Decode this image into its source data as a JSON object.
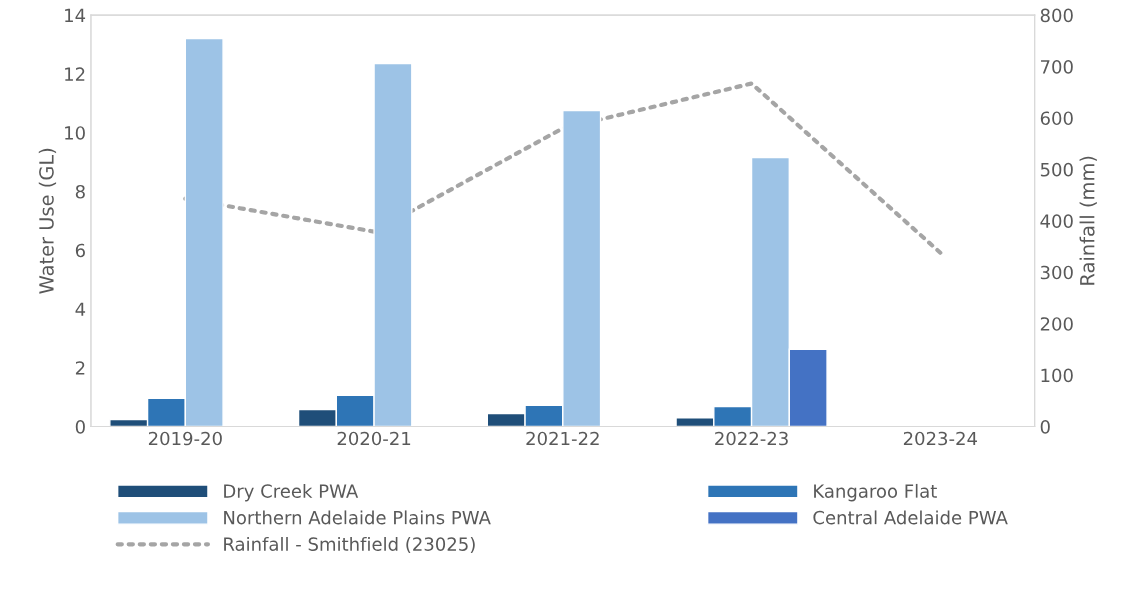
{
  "chart_data": {
    "type": "bar",
    "categories": [
      "2019-20",
      "2020-21",
      "2021-22",
      "2022-23",
      "2023-24"
    ],
    "ylabel": "Water Use (GL)",
    "y2label": "Rainfall (mm)",
    "series": [
      {
        "name": "Dry Creek PWA",
        "color": "#1f4e79",
        "values": [
          0.24,
          0.58,
          0.44,
          0.3,
          null
        ]
      },
      {
        "name": "Kangaroo Flat",
        "color": "#2e75b6",
        "values": [
          0.96,
          1.06,
          0.72,
          0.68,
          null
        ]
      },
      {
        "name": "Northern Adelaide Plains PWA",
        "color": "#9dc3e6",
        "values": [
          13.2,
          12.35,
          10.75,
          9.15,
          null
        ]
      },
      {
        "name": "Central Adelaide PWA",
        "color": "#4472c4",
        "values": [
          null,
          null,
          null,
          2.63,
          null
        ]
      },
      {
        "name": "Rainfall - Smithfield (23025)",
        "type": "line",
        "axis": "y2",
        "color": "#a5a5a5",
        "line_style": "dotted",
        "values": [
          443,
          379,
          580,
          667,
          338
        ]
      }
    ],
    "ylim": [
      0,
      14
    ],
    "yticks": [
      0,
      2,
      4,
      6,
      8,
      10,
      12,
      14
    ],
    "y2lim": [
      0,
      800
    ],
    "y2ticks": [
      0,
      100,
      200,
      300,
      400,
      500,
      600,
      700,
      800
    ],
    "grid": false,
    "legend": "bottom"
  }
}
